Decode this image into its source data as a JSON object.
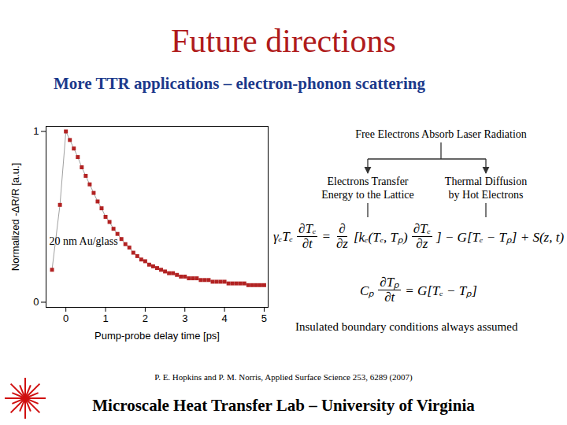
{
  "slide": {
    "title": "Future directions",
    "subtitle": "More TTR applications – electron-phonon scattering",
    "diagram": {
      "source": "Free Electrons Absorb Laser Radiation",
      "branches": [
        [
          "Electrons Transfer",
          "Energy to the Lattice"
        ],
        [
          "Thermal Diffusion",
          "by Hot Electrons"
        ]
      ]
    },
    "equations": [
      [
        "γₑTₑ",
        {
          "num": "∂Tₑ",
          "den": "∂t"
        },
        "=",
        {
          "num": "∂",
          "den": "∂z"
        },
        "[kₑ(Tₑ, Tₚ)",
        {
          "num": "∂Tₑ",
          "den": "∂z"
        },
        "] − G[Tₑ − Tₚ] + S(z, t)"
      ],
      [
        "Cₚ",
        {
          "num": "∂Tₚ",
          "den": "∂t"
        },
        "= G[Tₑ − Tₚ]"
      ]
    ],
    "note": "Insulated boundary conditions always assumed",
    "citation": "P. E. Hopkins and P. M. Norris, Applied Surface Science 253, 6289 (2007)",
    "footer": "Microscale Heat Transfer Lab – University of Virginia"
  },
  "chart_data": {
    "type": "scatter",
    "xlabel": "Pump-probe delay time [ps]",
    "ylabel": "Normalized -ΔR/R [a.u.]",
    "annotations": [
      "20 nm Au/glass"
    ],
    "x": [
      -0.35,
      -0.15,
      0.0,
      0.1,
      0.2,
      0.3,
      0.4,
      0.5,
      0.6,
      0.7,
      0.8,
      0.9,
      1.0,
      1.1,
      1.2,
      1.3,
      1.4,
      1.5,
      1.6,
      1.7,
      1.8,
      1.9,
      2.0,
      2.1,
      2.2,
      2.3,
      2.4,
      2.5,
      2.6,
      2.7,
      2.8,
      2.9,
      3.0,
      3.1,
      3.2,
      3.3,
      3.4,
      3.5,
      3.6,
      3.7,
      3.8,
      3.9,
      4.0,
      4.1,
      4.2,
      4.3,
      4.4,
      4.5,
      4.6,
      4.7,
      4.8,
      4.9,
      5.0
    ],
    "values": [
      0.19,
      0.57,
      1.0,
      0.95,
      0.9,
      0.85,
      0.79,
      0.74,
      0.69,
      0.64,
      0.59,
      0.55,
      0.5,
      0.47,
      0.43,
      0.4,
      0.37,
      0.34,
      0.32,
      0.29,
      0.27,
      0.25,
      0.24,
      0.22,
      0.21,
      0.2,
      0.19,
      0.18,
      0.17,
      0.17,
      0.16,
      0.15,
      0.15,
      0.14,
      0.14,
      0.14,
      0.13,
      0.13,
      0.13,
      0.12,
      0.12,
      0.12,
      0.12,
      0.11,
      0.11,
      0.11,
      0.11,
      0.11,
      0.1,
      0.1,
      0.1,
      0.1,
      0.1
    ],
    "color": "#b22222",
    "marker": "square",
    "line_style": "solid",
    "xlim": [
      -0.5,
      5.1
    ],
    "ylim": [
      -0.03,
      1.03
    ],
    "xticks": [
      0,
      1,
      2,
      3,
      4,
      5
    ],
    "yticks": [
      0,
      1
    ],
    "grid": false
  }
}
